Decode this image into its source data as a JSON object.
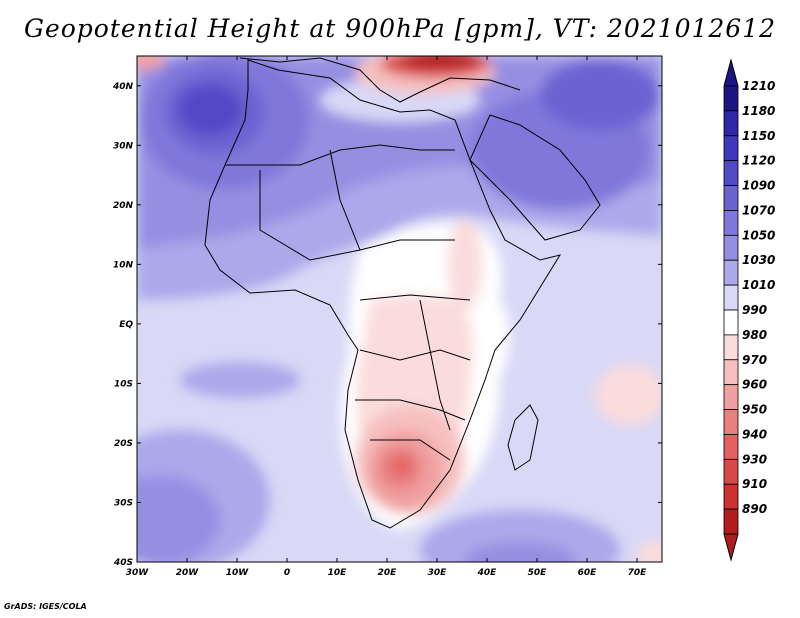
{
  "title": "Geopotential Height at 900hPa [gpm], VT: 2021012612",
  "credit": "GrADS: IGES/COLA",
  "map": {
    "region": "Africa",
    "lon_range": [
      -30,
      75
    ],
    "lat_range": [
      -40,
      45
    ],
    "x_ticks": [
      {
        "lon": -30,
        "label": "30W"
      },
      {
        "lon": -20,
        "label": "20W"
      },
      {
        "lon": -10,
        "label": "10W"
      },
      {
        "lon": 0,
        "label": "0"
      },
      {
        "lon": 10,
        "label": "10E"
      },
      {
        "lon": 20,
        "label": "20E"
      },
      {
        "lon": 30,
        "label": "30E"
      },
      {
        "lon": 40,
        "label": "40E"
      },
      {
        "lon": 50,
        "label": "50E"
      },
      {
        "lon": 60,
        "label": "60E"
      },
      {
        "lon": 70,
        "label": "70E"
      }
    ],
    "y_ticks": [
      {
        "lat": 40,
        "label": "40N"
      },
      {
        "lat": 30,
        "label": "30N"
      },
      {
        "lat": 20,
        "label": "20N"
      },
      {
        "lat": 10,
        "label": "10N"
      },
      {
        "lat": 0,
        "label": "EQ"
      },
      {
        "lat": -10,
        "label": "10S"
      },
      {
        "lat": -20,
        "label": "20S"
      },
      {
        "lat": -30,
        "label": "30S"
      },
      {
        "lat": -40,
        "label": "40S"
      }
    ]
  },
  "colorbar": {
    "levels": [
      {
        "label": "1210",
        "color": "#1c1483"
      },
      {
        "label": "1180",
        "color": "#2f27a8"
      },
      {
        "label": "1150",
        "color": "#4038bb"
      },
      {
        "label": "1120",
        "color": "#5249c6"
      },
      {
        "label": "1090",
        "color": "#6b63d2"
      },
      {
        "label": "1070",
        "color": "#7f78da"
      },
      {
        "label": "1050",
        "color": "#958fe2"
      },
      {
        "label": "1030",
        "color": "#aca8ea"
      },
      {
        "label": "1010",
        "color": "#d9d8f6"
      },
      {
        "label": "990",
        "color": "#ffffff"
      },
      {
        "label": "980",
        "color": "#fbdcdc"
      },
      {
        "label": "970",
        "color": "#f6c0c0"
      },
      {
        "label": "960",
        "color": "#f0a0a0"
      },
      {
        "label": "950",
        "color": "#e98080"
      },
      {
        "label": "940",
        "color": "#e26262"
      },
      {
        "label": "930",
        "color": "#d94848"
      },
      {
        "label": "910",
        "color": "#cc3030"
      },
      {
        "label": "890",
        "color": "#b01c1c"
      }
    ],
    "top_arrow_color": "#1c1483",
    "bottom_arrow_color": "#b01c1c"
  }
}
